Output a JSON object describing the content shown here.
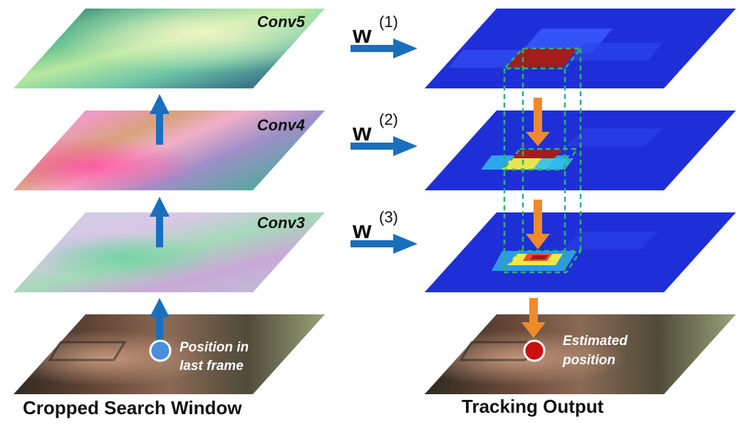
{
  "left_column": {
    "layers": [
      {
        "label": "Conv5"
      },
      {
        "label": "Conv4"
      },
      {
        "label": "Conv3"
      }
    ],
    "input_annotation": {
      "line1": "Position in",
      "line2": "last frame"
    },
    "caption": "Cropped Search Window"
  },
  "weights": [
    {
      "symbol": "w",
      "superscript": "(1)"
    },
    {
      "symbol": "w",
      "superscript": "(2)"
    },
    {
      "symbol": "w",
      "superscript": "(3)"
    }
  ],
  "right_column": {
    "output_annotation": {
      "line1": "Estimated",
      "line2": "position"
    },
    "caption": "Tracking Output"
  },
  "colors": {
    "flow_arrow": "#1a6fbd",
    "refine_arrow": "#ef8a2b",
    "heatmap_base": "#1f2fd8",
    "peak": "#a41c1c",
    "guide_box": "#2db36a",
    "input_marker": "#4a8fdc",
    "output_marker": "#c8100f"
  }
}
